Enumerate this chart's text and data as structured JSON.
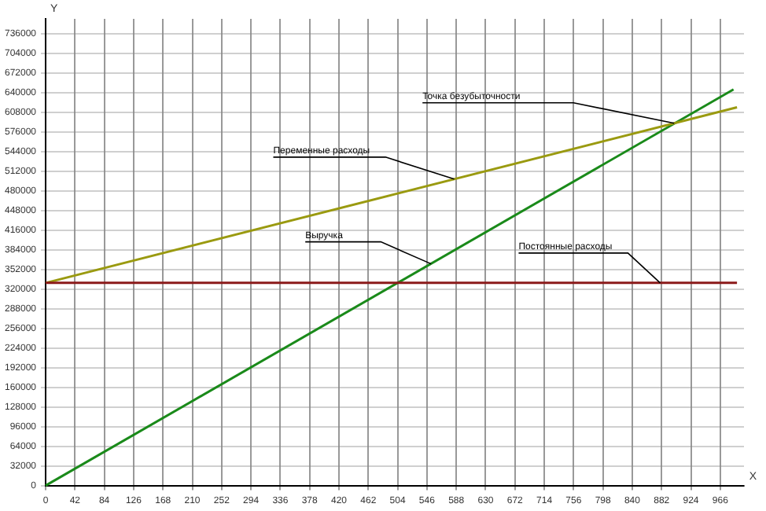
{
  "chart_data": {
    "type": "line",
    "xlabel": "X",
    "ylabel": "Y",
    "xlim": [
      0,
      1000
    ],
    "ylim": [
      0,
      760000
    ],
    "xticks": [
      0,
      42,
      84,
      126,
      168,
      210,
      252,
      294,
      336,
      378,
      420,
      462,
      504,
      546,
      588,
      630,
      672,
      714,
      756,
      798,
      840,
      882,
      924,
      966
    ],
    "yticks": [
      0,
      32000,
      64000,
      96000,
      128000,
      160000,
      192000,
      224000,
      256000,
      288000,
      320000,
      352000,
      384000,
      416000,
      448000,
      480000,
      512000,
      544000,
      576000,
      608000,
      640000,
      672000,
      704000,
      736000
    ],
    "series": [
      {
        "color": "#8b1a1a",
        "x": [
          0,
          990
        ],
        "values": [
          330000,
          330000
        ]
      },
      {
        "color": "#9a9a10",
        "x": [
          0,
          990
        ],
        "values": [
          330000,
          616000
        ]
      },
      {
        "color": "#1a8a1a",
        "x": [
          0,
          985
        ],
        "values": [
          0,
          645000
        ]
      }
    ],
    "annotations": [
      {
        "text": "Точка безубыточности",
        "x": 900,
        "y": 590000
      },
      {
        "text": "Переменные расходы",
        "x": 585,
        "y": 499000
      },
      {
        "text": "Выручка",
        "x": 552,
        "y": 361000
      },
      {
        "text": "Постоянные расходы",
        "x": 880,
        "y": 330000
      }
    ],
    "grid": true,
    "legend": false,
    "marker": "none",
    "line_style": "solid"
  }
}
